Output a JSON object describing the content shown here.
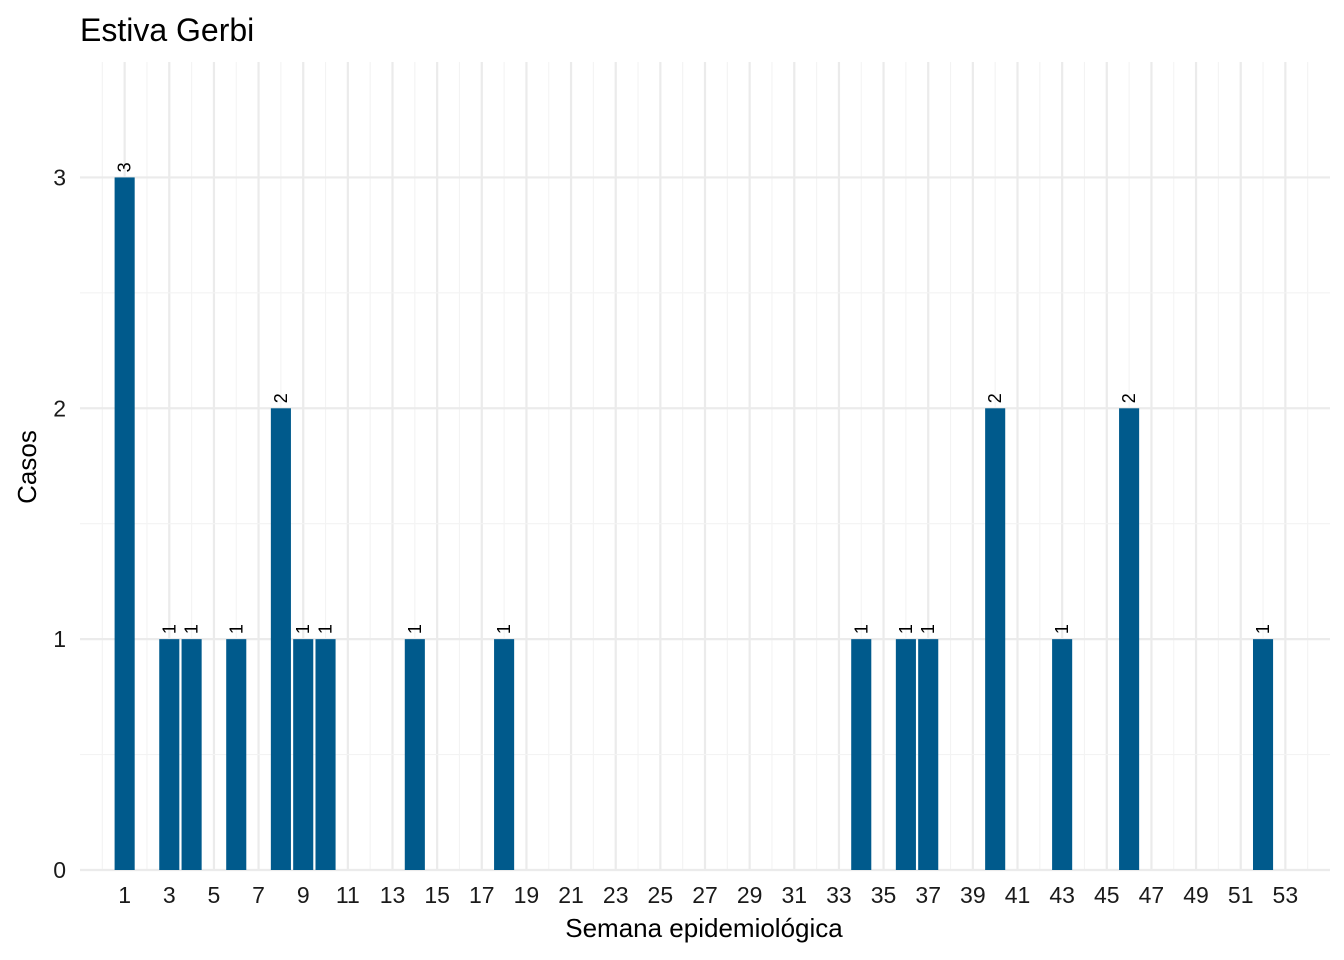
{
  "chart_data": {
    "type": "bar",
    "title": "Estiva Gerbi",
    "xlabel": "Semana epidemiológica",
    "ylabel": "Casos",
    "x": [
      1,
      3,
      4,
      6,
      8,
      9,
      10,
      14,
      18,
      34,
      36,
      37,
      40,
      43,
      46,
      52
    ],
    "values": [
      3,
      1,
      1,
      1,
      2,
      1,
      1,
      1,
      1,
      1,
      1,
      1,
      2,
      1,
      2,
      1
    ],
    "x_ticks": [
      1,
      3,
      5,
      7,
      9,
      11,
      13,
      15,
      17,
      19,
      21,
      23,
      25,
      27,
      29,
      31,
      33,
      35,
      37,
      39,
      41,
      43,
      45,
      47,
      49,
      51,
      53
    ],
    "y_ticks": [
      0,
      1,
      2,
      3
    ],
    "xlim": [
      -1,
      55
    ],
    "ylim": [
      0,
      3.5
    ],
    "grid": true,
    "bar_color": "#005a8c",
    "data_labels": true
  }
}
